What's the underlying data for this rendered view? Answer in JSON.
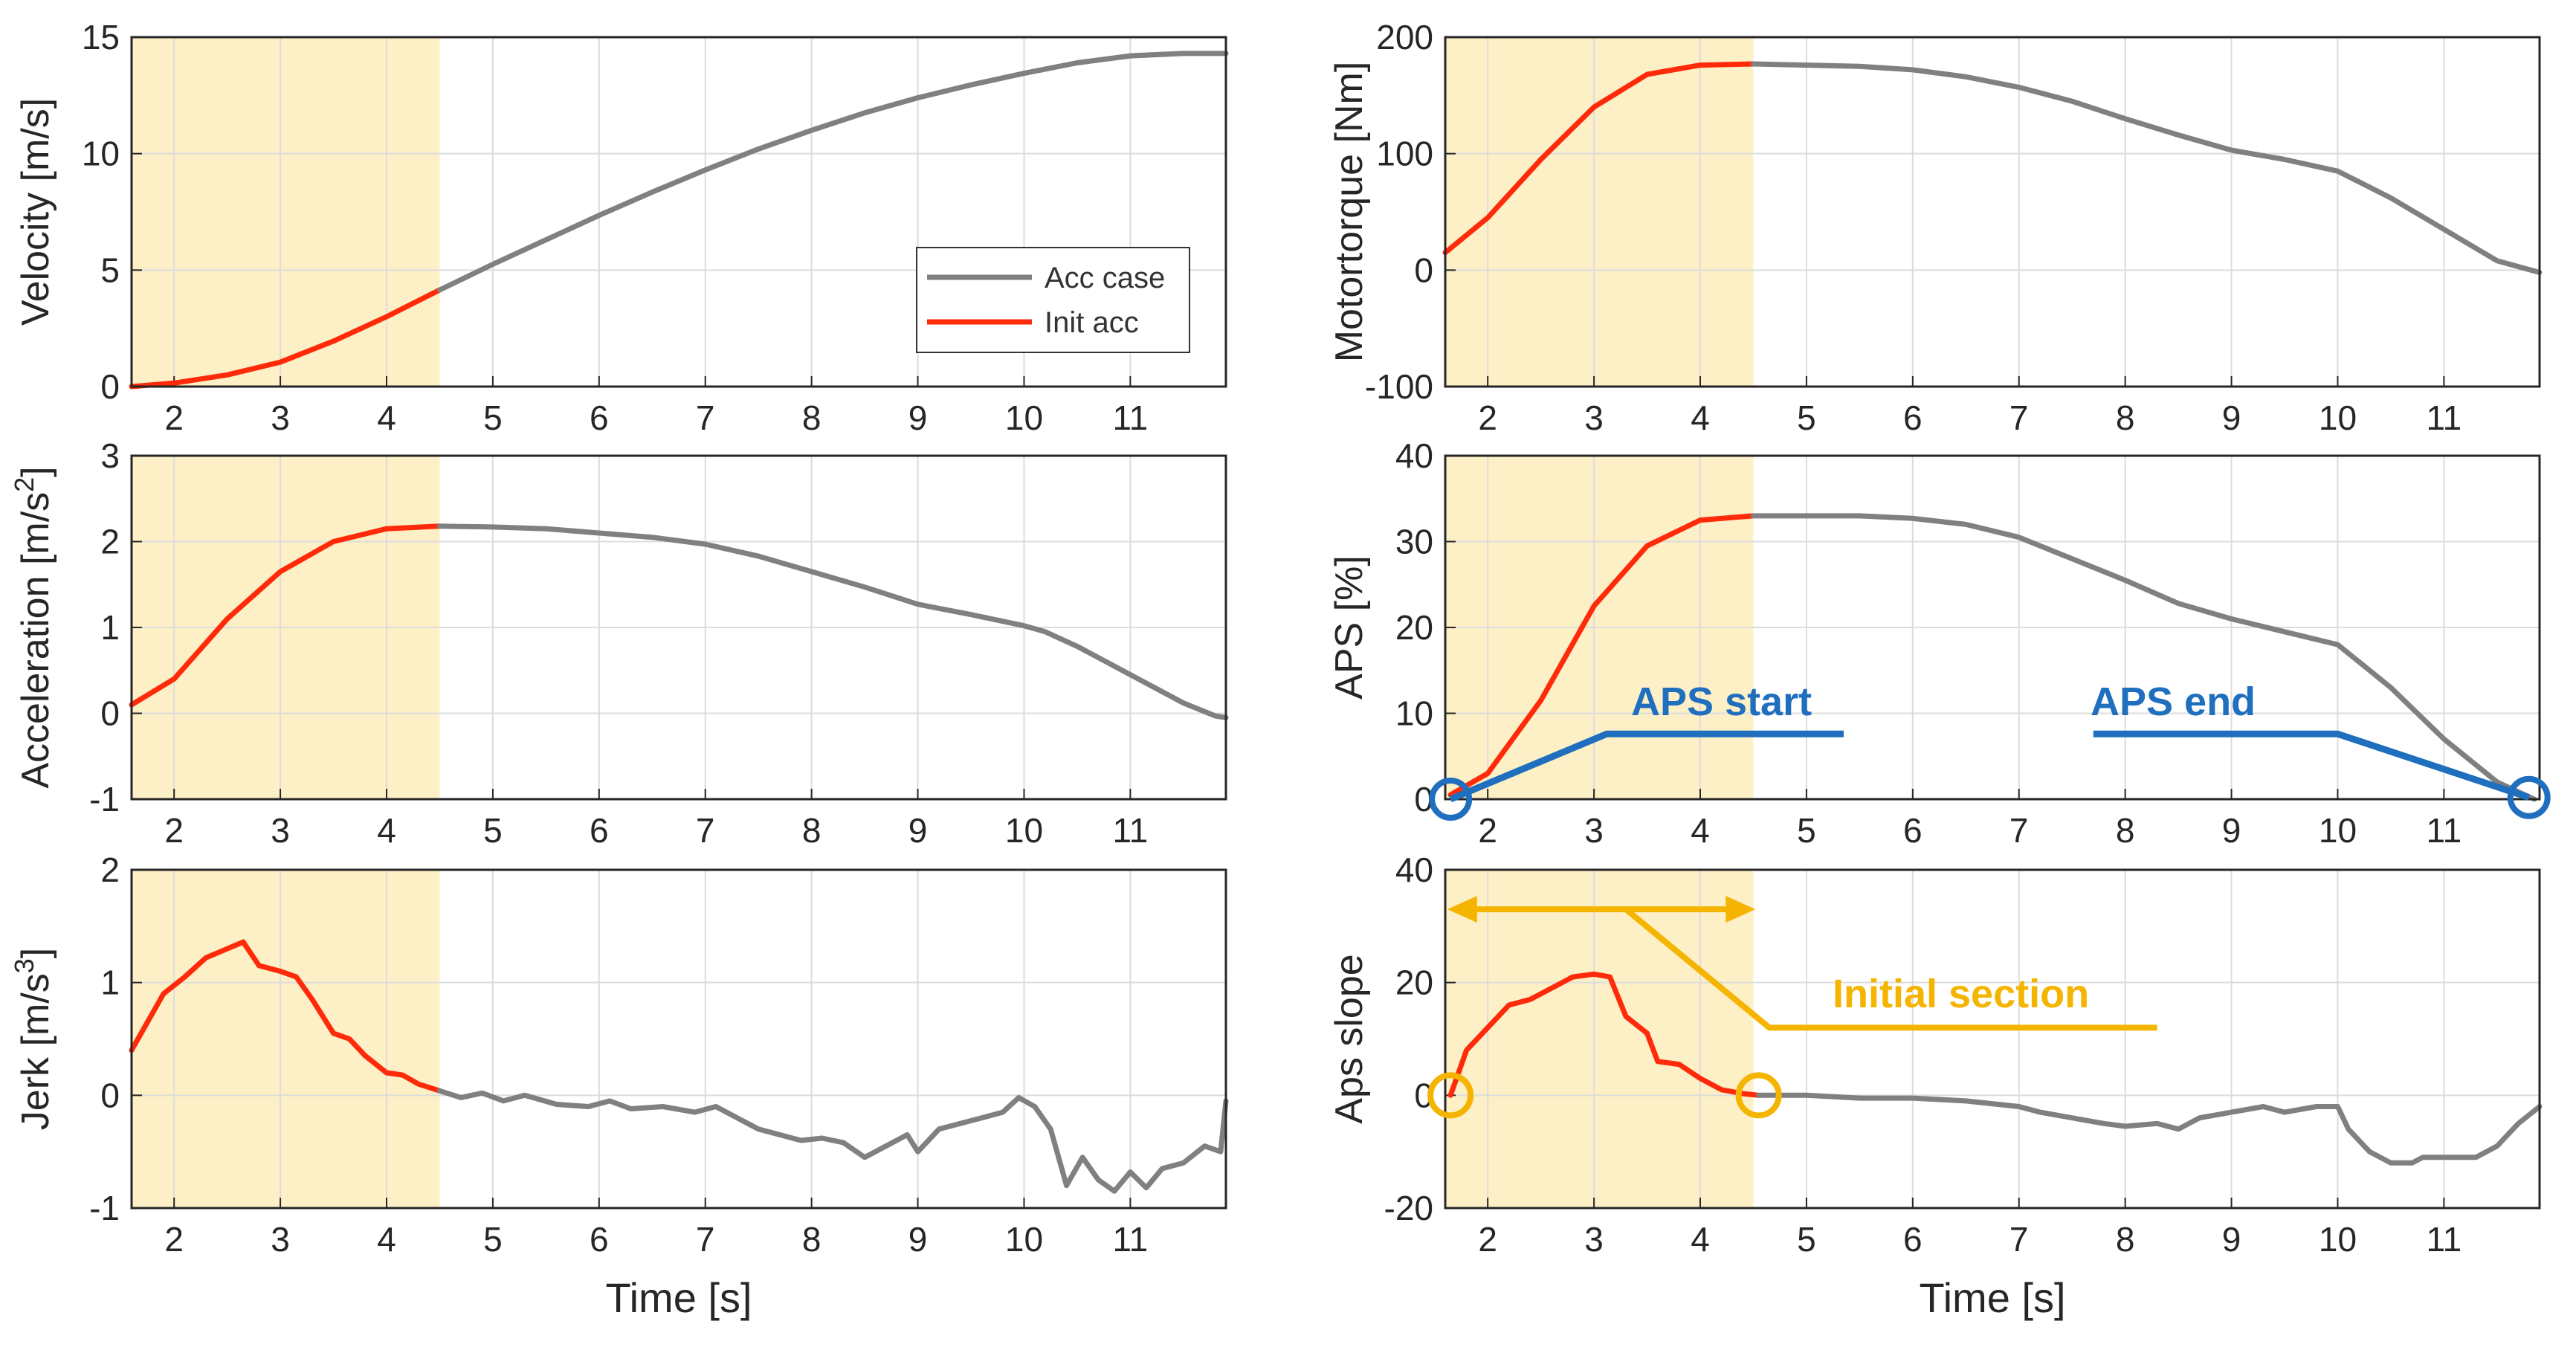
{
  "figure": {
    "x_axis_label": "Time [s]"
  },
  "colors": {
    "acc_case": "#808080",
    "init_acc": "#ff2a0a",
    "shade": "#fdf0c6",
    "grid": "#dcdcdc",
    "axis": "#262626",
    "aps_marker": "#1f6fbe",
    "initial_marker": "#f5b400"
  },
  "legend": {
    "acc_case": "Acc case",
    "init_acc": "Init acc"
  },
  "annotations": {
    "aps_start": "APS start",
    "aps_end": "APS end",
    "initial_section": "Initial section"
  },
  "chart_data": [
    {
      "id": "velocity",
      "type": "line",
      "ylabel": "Velocity [m/s]",
      "ylabel_main": "Velocity [m/s]",
      "ylabel_sup": "",
      "ylabel_end": "",
      "xlabel": "",
      "xlim": [
        1.6,
        11.9
      ],
      "ylim": [
        0,
        15
      ],
      "xticks": [
        2,
        3,
        4,
        5,
        6,
        7,
        8,
        9,
        10,
        11
      ],
      "yticks": [
        0,
        5,
        10,
        15
      ],
      "shaded_section": [
        1.6,
        4.5
      ],
      "series": [
        {
          "name": "Init acc",
          "x": [
            1.6,
            2.0,
            2.5,
            3.0,
            3.5,
            4.0,
            4.5
          ],
          "y": [
            0.0,
            0.15,
            0.5,
            1.05,
            1.95,
            3.0,
            4.15
          ]
        },
        {
          "name": "Acc case",
          "x": [
            4.5,
            5.0,
            5.5,
            6.0,
            6.5,
            7.0,
            7.5,
            8.0,
            8.5,
            9.0,
            9.5,
            10.0,
            10.5,
            11.0,
            11.5,
            11.9
          ],
          "y": [
            4.15,
            5.25,
            6.3,
            7.35,
            8.35,
            9.3,
            10.2,
            11.0,
            11.75,
            12.4,
            12.95,
            13.45,
            13.9,
            14.2,
            14.3,
            14.3
          ]
        }
      ]
    },
    {
      "id": "motor-torque",
      "type": "line",
      "ylabel": "Motortorque [Nm]",
      "ylabel_main": "Motortorque [Nm]",
      "ylabel_sup": "",
      "ylabel_end": "",
      "xlabel": "",
      "xlim": [
        1.6,
        11.9
      ],
      "ylim": [
        -100,
        200
      ],
      "xticks": [
        2,
        3,
        4,
        5,
        6,
        7,
        8,
        9,
        10,
        11
      ],
      "yticks": [
        -100,
        0,
        100,
        200
      ],
      "shaded_section": [
        1.6,
        4.5
      ],
      "series": [
        {
          "name": "Init acc",
          "x": [
            1.6,
            2.0,
            2.5,
            3.0,
            3.5,
            4.0,
            4.5
          ],
          "y": [
            15,
            45,
            95,
            140,
            168,
            176,
            177
          ]
        },
        {
          "name": "Acc case",
          "x": [
            4.5,
            5.0,
            5.5,
            6.0,
            6.5,
            7.0,
            7.5,
            8.0,
            8.5,
            9.0,
            9.5,
            10.0,
            10.5,
            11.0,
            11.5,
            11.9
          ],
          "y": [
            177,
            176,
            175,
            172,
            166,
            157,
            145,
            130,
            116,
            103,
            95,
            85,
            62,
            35,
            8,
            -2
          ]
        }
      ]
    },
    {
      "id": "acceleration",
      "type": "line",
      "ylabel": "Acceleration [m/s2]",
      "ylabel_main": "Acceleration [m/s",
      "ylabel_sup": "2",
      "ylabel_end": "]",
      "xlabel": "",
      "xlim": [
        1.6,
        11.9
      ],
      "ylim": [
        -1,
        3
      ],
      "xticks": [
        2,
        3,
        4,
        5,
        6,
        7,
        8,
        9,
        10,
        11
      ],
      "yticks": [
        -1,
        0,
        1,
        2,
        3
      ],
      "shaded_section": [
        1.6,
        4.5
      ],
      "series": [
        {
          "name": "Init acc",
          "x": [
            1.6,
            2.0,
            2.5,
            3.0,
            3.5,
            4.0,
            4.5
          ],
          "y": [
            0.1,
            0.4,
            1.1,
            1.65,
            2.0,
            2.15,
            2.18
          ]
        },
        {
          "name": "Acc case",
          "x": [
            4.5,
            5.0,
            5.5,
            6.0,
            6.5,
            7.0,
            7.5,
            8.0,
            8.5,
            9.0,
            9.5,
            10.0,
            10.2,
            10.5,
            11.0,
            11.5,
            11.8,
            11.9
          ],
          "y": [
            2.18,
            2.17,
            2.15,
            2.1,
            2.05,
            1.97,
            1.83,
            1.65,
            1.47,
            1.27,
            1.15,
            1.02,
            0.95,
            0.78,
            0.45,
            0.12,
            -0.03,
            -0.05
          ]
        }
      ]
    },
    {
      "id": "aps",
      "type": "line",
      "ylabel": "APS [%]",
      "ylabel_main": "APS [%]",
      "ylabel_sup": "",
      "ylabel_end": "",
      "xlabel": "",
      "xlim": [
        1.6,
        11.9
      ],
      "ylim": [
        0,
        40
      ],
      "xticks": [
        2,
        3,
        4,
        5,
        6,
        7,
        8,
        9,
        10,
        11
      ],
      "yticks": [
        0,
        10,
        20,
        30,
        40
      ],
      "shaded_section": [
        1.6,
        4.5
      ],
      "series": [
        {
          "name": "Init acc",
          "x": [
            1.65,
            2.0,
            2.5,
            3.0,
            3.5,
            4.0,
            4.5
          ],
          "y": [
            0.5,
            3.0,
            11.5,
            22.5,
            29.5,
            32.5,
            33.0
          ]
        },
        {
          "name": "Acc case",
          "x": [
            4.5,
            5.0,
            5.5,
            6.0,
            6.5,
            7.0,
            7.5,
            8.0,
            8.5,
            9.0,
            9.5,
            10.0,
            10.5,
            11.0,
            11.5,
            11.85
          ],
          "y": [
            33.0,
            33.0,
            33.0,
            32.7,
            32.0,
            30.5,
            28.0,
            25.5,
            22.8,
            21.0,
            19.5,
            18.0,
            13.0,
            7.0,
            2.0,
            0.0
          ]
        }
      ]
    },
    {
      "id": "jerk",
      "type": "line",
      "ylabel": "Jerk [m/s3]",
      "ylabel_main": "Jerk [m/s",
      "ylabel_sup": "3",
      "ylabel_end": "]",
      "xlabel": "Time [s]",
      "xlim": [
        1.6,
        11.9
      ],
      "ylim": [
        -1,
        2
      ],
      "xticks": [
        2,
        3,
        4,
        5,
        6,
        7,
        8,
        9,
        10,
        11
      ],
      "yticks": [
        -1,
        0,
        1,
        2
      ],
      "shaded_section": [
        1.6,
        4.5
      ],
      "series": [
        {
          "name": "Init acc",
          "x": [
            1.6,
            1.75,
            1.9,
            2.1,
            2.3,
            2.5,
            2.65,
            2.8,
            3.0,
            3.15,
            3.3,
            3.5,
            3.65,
            3.8,
            4.0,
            4.15,
            4.3,
            4.5
          ],
          "y": [
            0.4,
            0.65,
            0.9,
            1.05,
            1.22,
            1.3,
            1.36,
            1.15,
            1.1,
            1.05,
            0.85,
            0.55,
            0.5,
            0.35,
            0.2,
            0.18,
            0.1,
            0.04
          ]
        },
        {
          "name": "Acc case",
          "x": [
            4.5,
            4.7,
            4.9,
            5.1,
            5.3,
            5.6,
            5.9,
            6.1,
            6.3,
            6.6,
            6.9,
            7.1,
            7.3,
            7.5,
            7.7,
            7.9,
            8.1,
            8.3,
            8.5,
            8.7,
            8.9,
            9.0,
            9.2,
            9.4,
            9.6,
            9.8,
            9.95,
            10.1,
            10.25,
            10.4,
            10.55,
            10.7,
            10.85,
            11.0,
            11.15,
            11.3,
            11.5,
            11.7,
            11.85,
            11.9
          ],
          "y": [
            0.04,
            -0.02,
            0.02,
            -0.05,
            0.0,
            -0.08,
            -0.1,
            -0.05,
            -0.12,
            -0.1,
            -0.15,
            -0.1,
            -0.2,
            -0.3,
            -0.35,
            -0.4,
            -0.38,
            -0.42,
            -0.55,
            -0.45,
            -0.35,
            -0.5,
            -0.3,
            -0.25,
            -0.2,
            -0.15,
            -0.02,
            -0.1,
            -0.3,
            -0.8,
            -0.55,
            -0.75,
            -0.85,
            -0.68,
            -0.82,
            -0.65,
            -0.6,
            -0.45,
            -0.5,
            -0.05
          ]
        }
      ]
    },
    {
      "id": "aps-slope",
      "type": "line",
      "ylabel": "Aps slope",
      "ylabel_main": "Aps slope",
      "ylabel_sup": "",
      "ylabel_end": "",
      "xlabel": "Time [s]",
      "xlim": [
        1.6,
        11.9
      ],
      "ylim": [
        -20,
        40
      ],
      "xticks": [
        2,
        3,
        4,
        5,
        6,
        7,
        8,
        9,
        10,
        11
      ],
      "yticks": [
        -20,
        0,
        20,
        40
      ],
      "shaded_section": [
        1.6,
        4.5
      ],
      "series": [
        {
          "name": "Init acc",
          "x": [
            1.65,
            1.8,
            2.0,
            2.2,
            2.4,
            2.6,
            2.8,
            3.0,
            3.15,
            3.3,
            3.5,
            3.6,
            3.8,
            4.0,
            4.2,
            4.4,
            4.55
          ],
          "y": [
            0.0,
            8.0,
            12.0,
            16.0,
            17.0,
            19.0,
            21.0,
            21.5,
            21.0,
            14.0,
            11.0,
            6.0,
            5.5,
            3.0,
            1.0,
            0.3,
            0.0
          ]
        },
        {
          "name": "Acc case",
          "x": [
            4.55,
            5.0,
            5.5,
            6.0,
            6.5,
            7.0,
            7.2,
            7.5,
            7.8,
            8.0,
            8.3,
            8.5,
            8.7,
            9.0,
            9.3,
            9.5,
            9.8,
            10.0,
            10.1,
            10.3,
            10.5,
            10.7,
            10.8,
            11.0,
            11.3,
            11.5,
            11.7,
            11.9
          ],
          "y": [
            0.0,
            0.0,
            -0.5,
            -0.5,
            -1.0,
            -2.0,
            -3.0,
            -4.0,
            -5.0,
            -5.5,
            -5.0,
            -6.0,
            -4.0,
            -3.0,
            -2.0,
            -3.0,
            -2.0,
            -2.0,
            -6.0,
            -10.0,
            -12.0,
            -12.0,
            -11.0,
            -11.0,
            -11.0,
            -9.0,
            -5.0,
            -2.0
          ]
        }
      ]
    }
  ]
}
